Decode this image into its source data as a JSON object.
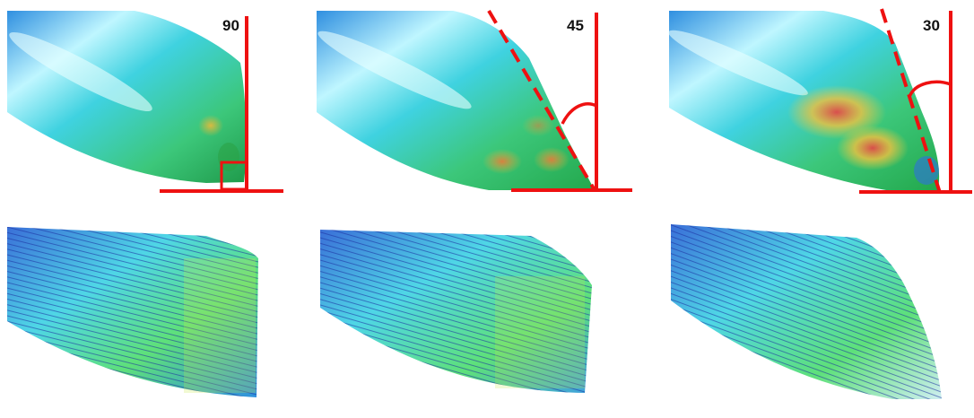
{
  "panels": [
    {
      "angle_label": "90"
    },
    {
      "angle_label": "45"
    },
    {
      "angle_label": "30"
    }
  ],
  "colors": {
    "guide_line": "#ee1111",
    "background": "#ffffff"
  }
}
